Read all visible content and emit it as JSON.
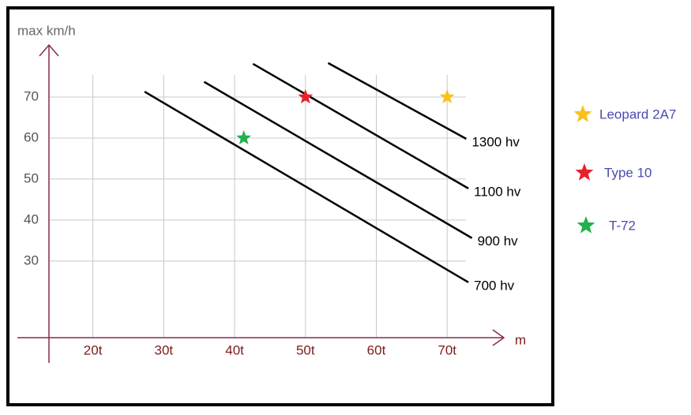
{
  "chart_data": {
    "type": "scatter",
    "xlabel": "m",
    "ylabel": "max km/h",
    "xlim": [
      13.8,
      78
    ],
    "ylim": [
      11.3,
      82.7
    ],
    "xticks": [
      {
        "value": 20,
        "label": "20t"
      },
      {
        "value": 30,
        "label": "30t"
      },
      {
        "value": 40,
        "label": "40t"
      },
      {
        "value": 50,
        "label": "50t"
      },
      {
        "value": 60,
        "label": "60t"
      },
      {
        "value": 70,
        "label": "70t"
      }
    ],
    "yticks": [
      30,
      40,
      50,
      60,
      70
    ],
    "grid": true,
    "lines": [
      {
        "name": "700 hv",
        "color": "#000000",
        "x": [
          27.3,
          73
        ],
        "values": [
          71.3,
          24.8
        ]
      },
      {
        "name": "900 hv",
        "color": "#000000",
        "x": [
          35.7,
          73.5
        ],
        "values": [
          73.7,
          35.6
        ]
      },
      {
        "name": "1100 hv",
        "color": "#000000",
        "x": [
          42.6,
          73
        ],
        "values": [
          78.1,
          47.7
        ]
      },
      {
        "name": "1300 hv",
        "color": "#000000",
        "x": [
          53.2,
          72.7
        ],
        "values": [
          78.3,
          59.8
        ]
      }
    ],
    "series": [
      {
        "name": "Leopard 2A7",
        "color": "#f7c21b",
        "x": [
          70
        ],
        "values": [
          70
        ]
      },
      {
        "name": "Type 10",
        "color": "#e8202a",
        "x": [
          50
        ],
        "values": [
          70
        ]
      },
      {
        "name": "T-72",
        "color": "#22b14c",
        "x": [
          41.3
        ],
        "values": [
          60
        ]
      }
    ]
  }
}
